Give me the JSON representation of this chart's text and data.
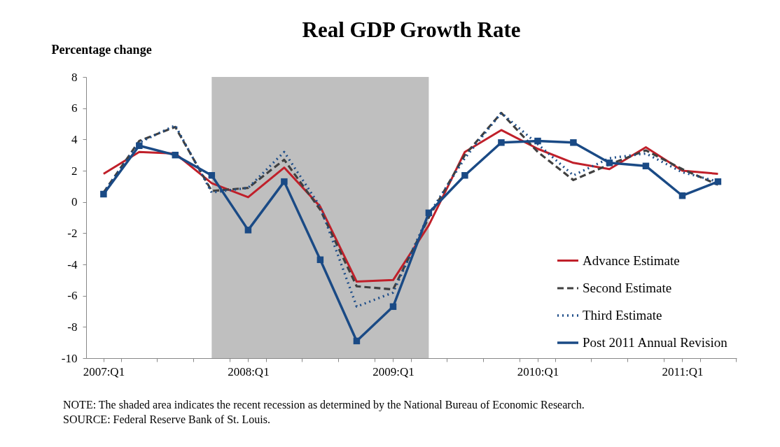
{
  "chart_data": {
    "type": "line",
    "title": "Real GDP Growth Rate",
    "ylabel": "Percentage change",
    "x": [
      "2007-01",
      "2007-04",
      "2007-07",
      "2007-10",
      "2008-01",
      "2008-04",
      "2008-07",
      "2008-10",
      "2009-01",
      "2009-04",
      "2009-07",
      "2009-10",
      "2010-01",
      "2010-04",
      "2010-07",
      "2010-10",
      "2011-01",
      "2011-04"
    ],
    "series": [
      {
        "name": "Advance Estimate",
        "color": "#c0202a",
        "line_style": "solid",
        "marker": "none",
        "values": [
          1.8,
          3.2,
          3.1,
          1.2,
          0.3,
          2.2,
          -0.3,
          -5.1,
          -5.0,
          -1.5,
          3.2,
          4.6,
          3.4,
          2.5,
          2.1,
          3.5,
          2.0,
          1.8
        ]
      },
      {
        "name": "Second Estimate",
        "color": "#404040",
        "line_style": "dashed",
        "marker": "none",
        "values": [
          0.6,
          3.9,
          4.8,
          0.7,
          0.9,
          2.7,
          -0.5,
          -5.4,
          -5.6,
          -1.0,
          3.0,
          5.7,
          3.2,
          1.4,
          2.4,
          3.3,
          2.1,
          1.1
        ]
      },
      {
        "name": "Third Estimate",
        "color": "#1f4e89",
        "line_style": "dotted",
        "marker": "none",
        "values": [
          0.6,
          3.8,
          4.9,
          0.6,
          0.9,
          3.2,
          -0.3,
          -6.7,
          -5.8,
          -0.8,
          2.8,
          5.7,
          3.7,
          1.7,
          2.8,
          3.1,
          1.9,
          1.3
        ]
      },
      {
        "name": "Post 2011 Annual Revision",
        "color": "#1a4a85",
        "line_style": "solid",
        "marker": "square",
        "values": [
          0.5,
          3.6,
          3.0,
          1.7,
          -1.8,
          1.3,
          -3.7,
          -8.9,
          -6.7,
          -0.7,
          1.7,
          3.8,
          3.9,
          3.8,
          2.5,
          2.3,
          0.4,
          1.3
        ]
      }
    ],
    "xlim": [
      "2006-11-18",
      "2011-05-18"
    ],
    "xticks": [
      {
        "value": "2007-01",
        "label": "2007:Q1"
      },
      {
        "value": "2008-01",
        "label": "2008:Q1"
      },
      {
        "value": "2009-01",
        "label": "2009:Q1"
      },
      {
        "value": "2010-01",
        "label": "2010:Q1"
      },
      {
        "value": "2011-01",
        "label": "2011:Q1"
      },
      {
        "value": "2007-02-15",
        "label": null
      },
      {
        "value": "2007-05-16",
        "label": null
      },
      {
        "value": "2007-08-16",
        "label": null
      },
      {
        "value": "2007-11-16",
        "label": null
      },
      {
        "value": "2008-02-15",
        "label": null
      },
      {
        "value": "2008-05-16",
        "label": null
      },
      {
        "value": "2008-08-16",
        "label": null
      },
      {
        "value": "2008-11-16",
        "label": null
      },
      {
        "value": "2009-02-15",
        "label": null
      },
      {
        "value": "2009-05-16",
        "label": null
      },
      {
        "value": "2009-08-16",
        "label": null
      },
      {
        "value": "2009-11-16",
        "label": null
      },
      {
        "value": "2010-02-15",
        "label": null
      },
      {
        "value": "2010-05-16",
        "label": null
      },
      {
        "value": "2010-08-16",
        "label": null
      },
      {
        "value": "2010-11-16",
        "label": null
      },
      {
        "value": "2011-02-15",
        "label": null
      },
      {
        "value": "2011-05-16",
        "label": null
      }
    ],
    "ylim": [
      -10,
      8
    ],
    "yticks": [
      -10,
      -8,
      -6,
      -4,
      -2,
      0,
      2,
      4,
      6,
      8
    ],
    "bands": [
      {
        "axis": "x",
        "from": "2007-10",
        "to": "2009-04",
        "label": null,
        "color": "#bfbfbf"
      }
    ],
    "grid": false,
    "legend": "bottom right",
    "annotations": [
      "NOTE: The shaded area indicates the recent recession as determined by the National Bureau of Economic Research.",
      "SOURCE: Federal Reserve Bank of St. Louis."
    ]
  }
}
